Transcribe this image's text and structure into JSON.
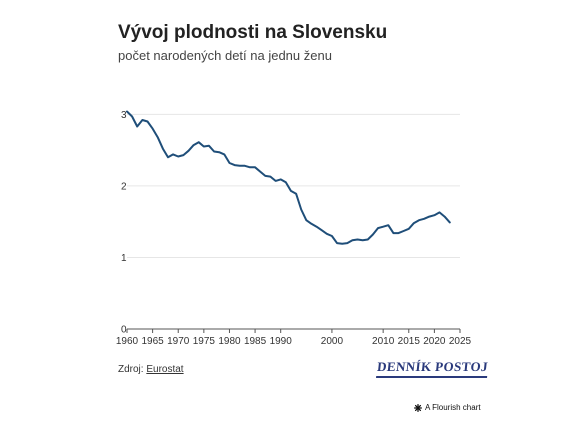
{
  "header": {
    "title": "Vývoj plodnosti na Slovensku",
    "subtitle": "počet narodených detí na jednu ženu"
  },
  "footer": {
    "source_prefix": "Zdroj: ",
    "source_link": "Eurostat",
    "logo_text": "DENNÍK POSTOJ",
    "flourish_label": "A Flourish chart"
  },
  "colors": {
    "line": "#1f4e79",
    "grid": "#e6e6e6",
    "logo": "#2a3a7c"
  },
  "icons": {
    "flourish": "flourish-star-icon"
  },
  "chart_data": {
    "type": "line",
    "title": "Vývoj plodnosti na Slovensku",
    "subtitle": "počet narodených detí na jednu ženu",
    "xlabel": "",
    "ylabel": "",
    "xlim": [
      1960,
      2025
    ],
    "ylim": [
      0,
      3.2
    ],
    "x_ticks": [
      1960,
      1965,
      1970,
      1975,
      1980,
      1985,
      1990,
      2000,
      2010,
      2015,
      2020,
      2025
    ],
    "y_ticks": [
      0,
      1,
      2,
      3
    ],
    "grid": true,
    "legend": "none",
    "series": [
      {
        "name": "",
        "x": [
          1960,
          1961,
          1962,
          1963,
          1964,
          1965,
          1966,
          1967,
          1968,
          1969,
          1970,
          1971,
          1972,
          1973,
          1974,
          1975,
          1976,
          1977,
          1978,
          1979,
          1980,
          1981,
          1982,
          1983,
          1984,
          1985,
          1986,
          1987,
          1988,
          1989,
          1990,
          1991,
          1992,
          1993,
          1994,
          1995,
          1996,
          1997,
          1998,
          1999,
          2000,
          2001,
          2002,
          2003,
          2004,
          2005,
          2006,
          2007,
          2008,
          2009,
          2010,
          2011,
          2012,
          2013,
          2014,
          2015,
          2016,
          2017,
          2018,
          2019,
          2020,
          2021,
          2022,
          2023
        ],
        "values": [
          3.04,
          2.97,
          2.83,
          2.92,
          2.9,
          2.8,
          2.68,
          2.52,
          2.4,
          2.44,
          2.41,
          2.43,
          2.49,
          2.57,
          2.61,
          2.55,
          2.56,
          2.48,
          2.47,
          2.44,
          2.32,
          2.29,
          2.28,
          2.28,
          2.26,
          2.26,
          2.2,
          2.14,
          2.13,
          2.07,
          2.09,
          2.05,
          1.93,
          1.89,
          1.67,
          1.52,
          1.47,
          1.43,
          1.38,
          1.33,
          1.3,
          1.2,
          1.19,
          1.2,
          1.24,
          1.25,
          1.24,
          1.25,
          1.32,
          1.41,
          1.43,
          1.45,
          1.34,
          1.34,
          1.37,
          1.4,
          1.48,
          1.52,
          1.54,
          1.57,
          1.59,
          1.63,
          1.57,
          1.49
        ]
      }
    ]
  }
}
